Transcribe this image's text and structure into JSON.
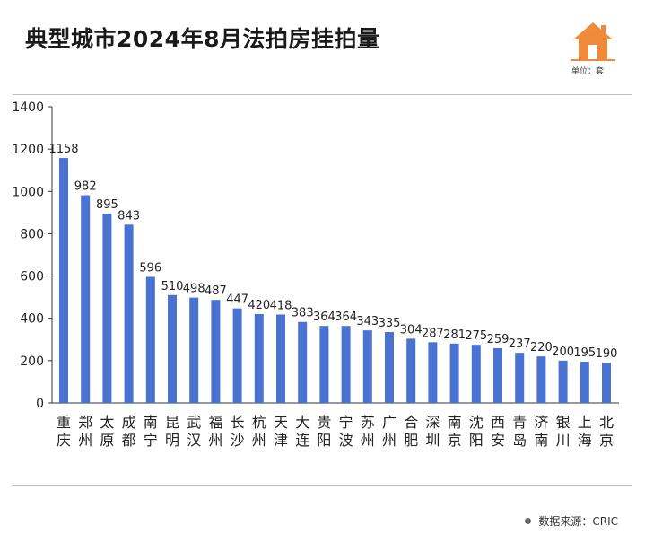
{
  "header": {
    "title": "典型城市2024年8月法拍房挂拍量",
    "unit_label": "单位：套"
  },
  "footer": {
    "source_label": "数据来源：CRIC"
  },
  "icons": {
    "brand": "house-logo-icon"
  },
  "colors": {
    "bar": "#4a72d2",
    "brand": "#ef8a3a",
    "axis": "#333333"
  },
  "chart_data": {
    "type": "bar",
    "title": "典型城市2024年8月法拍房挂拍量",
    "xlabel": "",
    "ylabel": "",
    "ylim": [
      0,
      1400
    ],
    "yticks": [
      0,
      200,
      400,
      600,
      800,
      1000,
      1200,
      1400
    ],
    "grid": false,
    "legend": "none",
    "categories": [
      "重庆",
      "郑州",
      "太原",
      "成都",
      "南宁",
      "昆明",
      "武汉",
      "福州",
      "长沙",
      "杭州",
      "天津",
      "大连",
      "贵阳",
      "宁波",
      "苏州",
      "广州",
      "合肥",
      "深圳",
      "南京",
      "沈阳",
      "西安",
      "青岛",
      "济南",
      "银川",
      "上海",
      "北京"
    ],
    "values": [
      1158,
      982,
      895,
      843,
      596,
      510,
      498,
      487,
      447,
      420,
      418,
      383,
      364,
      364,
      343,
      335,
      304,
      287,
      281,
      275,
      259,
      237,
      220,
      200,
      195,
      190
    ]
  }
}
